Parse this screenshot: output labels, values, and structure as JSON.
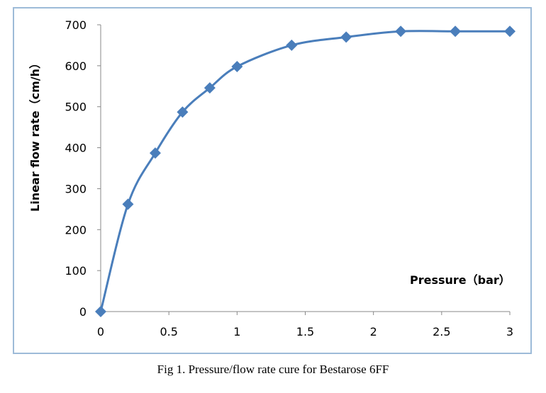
{
  "caption": "Fig 1. Pressure/flow rate cure for Bestarose 6FF",
  "chart_data": {
    "type": "line",
    "title": "",
    "xlabel": "Pressure（bar）",
    "ylabel": "Linear flow rate（cm/h）",
    "xlim": [
      0,
      3
    ],
    "ylim": [
      0,
      700
    ],
    "xticks": [
      "0",
      "0.5",
      "1",
      "1.5",
      "2",
      "2.5",
      "3"
    ],
    "yticks": [
      "0",
      "100",
      "200",
      "300",
      "400",
      "500",
      "600",
      "700"
    ],
    "grid": false,
    "smooth": true,
    "marker": "diamond",
    "color": "#4a7ebb",
    "x": [
      0,
      0.2,
      0.4,
      0.6,
      0.8,
      1.0,
      1.4,
      1.8,
      2.2,
      2.6,
      3.0
    ],
    "y": [
      0,
      262,
      387,
      487,
      546,
      598,
      650,
      670,
      684,
      684,
      684
    ]
  }
}
